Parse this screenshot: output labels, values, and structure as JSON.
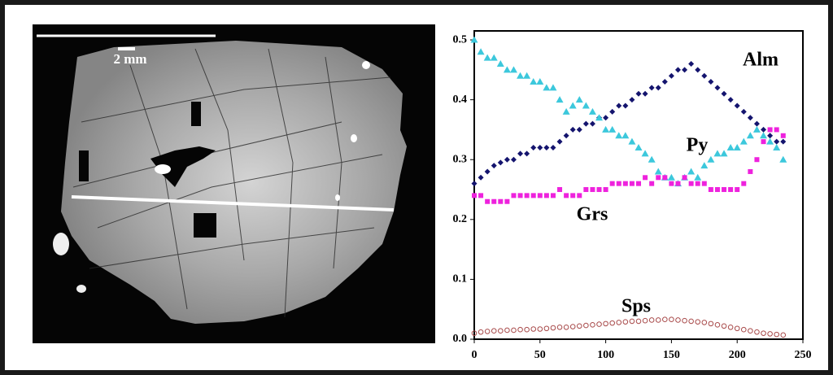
{
  "image_scale_label": "2 mm",
  "chart_data": {
    "type": "scatter",
    "x": [
      0,
      5,
      10,
      15,
      20,
      25,
      30,
      35,
      40,
      45,
      50,
      55,
      60,
      65,
      70,
      75,
      80,
      85,
      90,
      95,
      100,
      105,
      110,
      115,
      120,
      125,
      130,
      135,
      140,
      145,
      150,
      155,
      160,
      165,
      170,
      175,
      180,
      185,
      190,
      195,
      200,
      205,
      210,
      215,
      220,
      225,
      230,
      235
    ],
    "series": [
      {
        "name": "Alm",
        "color": "#14146e",
        "marker": "diamond",
        "values": [
          0.26,
          0.27,
          0.28,
          0.29,
          0.295,
          0.3,
          0.3,
          0.31,
          0.31,
          0.32,
          0.32,
          0.32,
          0.32,
          0.33,
          0.34,
          0.35,
          0.35,
          0.36,
          0.36,
          0.37,
          0.37,
          0.38,
          0.39,
          0.39,
          0.4,
          0.41,
          0.41,
          0.42,
          0.42,
          0.43,
          0.44,
          0.45,
          0.45,
          0.46,
          0.45,
          0.44,
          0.43,
          0.42,
          0.41,
          0.4,
          0.39,
          0.38,
          0.37,
          0.36,
          0.35,
          0.34,
          0.33,
          0.33
        ]
      },
      {
        "name": "Py",
        "color": "#3cc8dc",
        "marker": "triangle",
        "values": [
          0.5,
          0.48,
          0.47,
          0.47,
          0.46,
          0.45,
          0.45,
          0.44,
          0.44,
          0.43,
          0.43,
          0.42,
          0.42,
          0.4,
          0.38,
          0.39,
          0.4,
          0.39,
          0.38,
          0.37,
          0.35,
          0.35,
          0.34,
          0.34,
          0.33,
          0.32,
          0.31,
          0.3,
          0.28,
          0.27,
          0.27,
          0.26,
          0.27,
          0.28,
          0.27,
          0.29,
          0.3,
          0.31,
          0.31,
          0.32,
          0.32,
          0.33,
          0.34,
          0.35,
          0.34,
          0.33,
          0.32,
          0.3
        ]
      },
      {
        "name": "Grs",
        "color": "#ee22dd",
        "marker": "square",
        "values": [
          0.24,
          0.24,
          0.23,
          0.23,
          0.23,
          0.23,
          0.24,
          0.24,
          0.24,
          0.24,
          0.24,
          0.24,
          0.24,
          0.25,
          0.24,
          0.24,
          0.24,
          0.25,
          0.25,
          0.25,
          0.25,
          0.26,
          0.26,
          0.26,
          0.26,
          0.26,
          0.27,
          0.26,
          0.27,
          0.27,
          0.26,
          0.26,
          0.27,
          0.26,
          0.26,
          0.26,
          0.25,
          0.25,
          0.25,
          0.25,
          0.25,
          0.26,
          0.28,
          0.3,
          0.33,
          0.35,
          0.35,
          0.34
        ]
      },
      {
        "name": "Sps",
        "color": "#a84a4a",
        "marker": "circle",
        "values": [
          0.01,
          0.012,
          0.013,
          0.014,
          0.014,
          0.015,
          0.015,
          0.016,
          0.016,
          0.017,
          0.017,
          0.018,
          0.019,
          0.02,
          0.02,
          0.021,
          0.022,
          0.023,
          0.024,
          0.025,
          0.026,
          0.027,
          0.028,
          0.029,
          0.03,
          0.03,
          0.031,
          0.032,
          0.032,
          0.033,
          0.033,
          0.032,
          0.031,
          0.03,
          0.029,
          0.028,
          0.026,
          0.024,
          0.022,
          0.02,
          0.018,
          0.016,
          0.014,
          0.012,
          0.01,
          0.009,
          0.008,
          0.007
        ]
      }
    ],
    "xlim": [
      0,
      250
    ],
    "xticks": [
      0,
      50,
      100,
      150,
      200,
      250
    ],
    "ylim": [
      0,
      0.515
    ],
    "yticks": [
      {
        "value": 0,
        "label": "0.0"
      },
      0.1,
      0.2,
      0.3,
      0.4,
      0.5
    ]
  }
}
